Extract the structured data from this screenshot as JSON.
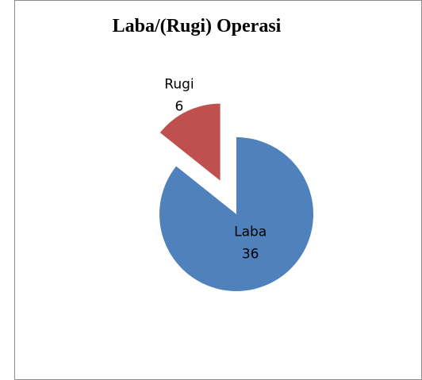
{
  "chart_data": {
    "type": "pie",
    "title": "Laba/(Rugi) Operasi",
    "categories": [
      "Laba",
      "Rugi"
    ],
    "values": [
      36,
      6
    ],
    "colors": [
      "#4f81bd",
      "#c0504d"
    ],
    "exploded": [
      false,
      true
    ]
  }
}
